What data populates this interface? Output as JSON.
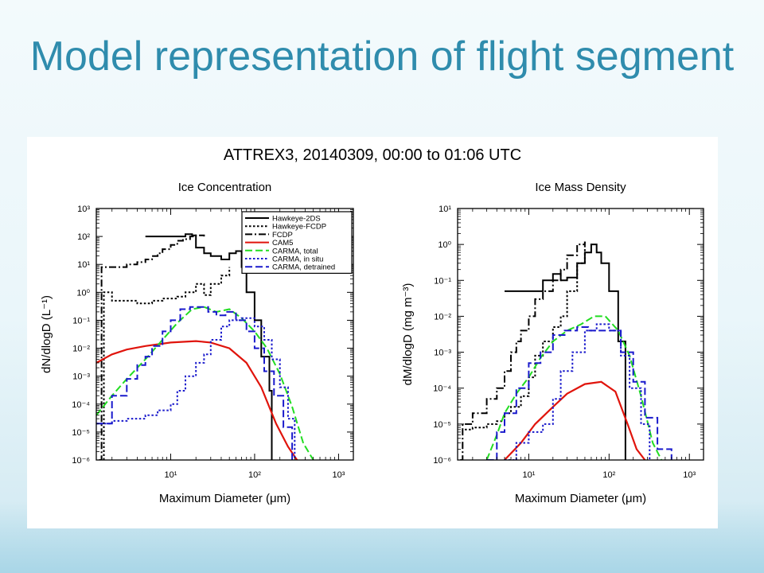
{
  "slide": {
    "title": "Model representation of flight segment"
  },
  "figure": {
    "title": "ATTREX3, 20140309, 00:00 to 01:06 UTC"
  },
  "colors": {
    "title": "#2f8cad",
    "hawkeye_2ds": "#000000",
    "cam5": "#e0140c",
    "carma_total": "#22dd22",
    "carma_in_situ": "#1a1acc",
    "carma_detrained": "#1a1acc"
  },
  "chart_data": [
    {
      "type": "line",
      "title": "Ice Concentration",
      "xlabel": "Maximum Diameter (μm)",
      "ylabel": "dN/dlogD (L⁻¹)",
      "xscale": "log",
      "yscale": "log",
      "xlim": [
        1.3,
        1500
      ],
      "ylim": [
        1e-06,
        1000
      ],
      "xticks": [
        10,
        100,
        1000
      ],
      "xtick_labels": [
        "10¹",
        "10²",
        "10³"
      ],
      "yticks": [
        1e-06,
        1e-05,
        0.0001,
        0.001,
        0.01,
        0.1,
        1,
        10,
        100,
        1000
      ],
      "ytick_labels": [
        "10⁻⁶",
        "10⁻⁵",
        "10⁻⁴",
        "10⁻³",
        "10⁻²",
        "10⁻¹",
        "10⁰",
        "10¹",
        "10²",
        "10³"
      ],
      "legend_position": "top-right",
      "series": [
        {
          "name": "Hawkeye-2DS",
          "style": "solid",
          "color": "#000000",
          "step": true,
          "x": [
            5,
            8,
            12,
            15,
            18,
            20,
            25,
            30,
            40,
            50,
            60,
            70,
            80,
            100,
            120,
            150,
            160,
            160
          ],
          "y": [
            100,
            100,
            100,
            120,
            110,
            40,
            25,
            20,
            15,
            25,
            30,
            8,
            1,
            0.1,
            0.005,
            0.0003,
            0.0003,
            1e-06
          ]
        },
        {
          "name": "Hawkeye-FCDP",
          "style": "dotted",
          "color": "#000000",
          "step": true,
          "x": [
            1.6,
            1.6,
            2,
            3,
            4,
            5,
            6,
            7,
            8,
            10,
            12,
            15,
            20,
            25,
            30,
            40,
            50
          ],
          "y": [
            1e-06,
            1,
            0.5,
            0.5,
            0.4,
            0.4,
            0.5,
            0.5,
            0.6,
            0.6,
            0.7,
            1,
            2,
            0.8,
            2,
            4,
            8
          ]
        },
        {
          "name": "FCDP",
          "style": "dashdot",
          "color": "#000000",
          "step": true,
          "x": [
            1.4,
            1.5,
            2,
            3,
            4,
            5,
            6,
            7,
            8,
            10,
            12,
            14,
            17,
            20,
            25
          ],
          "y": [
            1e-06,
            8,
            8,
            10,
            12,
            15,
            20,
            25,
            35,
            50,
            70,
            80,
            100,
            110,
            100
          ]
        },
        {
          "name": "CAM5",
          "style": "solid",
          "color": "#e0140c",
          "step": false,
          "x": [
            1.3,
            2,
            3,
            5,
            10,
            20,
            30,
            50,
            80,
            120,
            180,
            250,
            320
          ],
          "y": [
            0.003,
            0.006,
            0.009,
            0.012,
            0.016,
            0.018,
            0.016,
            0.01,
            0.003,
            0.0004,
            2e-05,
            3e-06,
            1e-06
          ]
        },
        {
          "name": "CARMA, total",
          "style": "dashed",
          "color": "#22dd22",
          "step": false,
          "x": [
            1.3,
            2,
            3,
            5,
            8,
            12,
            18,
            25,
            35,
            50,
            70,
            100,
            140,
            200,
            280,
            380,
            500
          ],
          "y": [
            4e-05,
            0.0002,
            0.0008,
            0.004,
            0.02,
            0.08,
            0.25,
            0.3,
            0.2,
            0.25,
            0.12,
            0.04,
            0.01,
            0.0012,
            8e-05,
            4e-06,
            1e-06
          ]
        },
        {
          "name": "CARMA, in situ",
          "style": "dotted",
          "color": "#1a1acc",
          "step": true,
          "x": [
            1.3,
            2,
            3,
            5,
            7,
            10,
            12,
            15,
            20,
            25,
            30,
            40,
            50,
            70,
            100,
            130,
            160,
            200,
            250,
            300
          ],
          "y": [
            2e-05,
            2.5e-05,
            3e-05,
            4e-05,
            6e-05,
            0.0001,
            0.0003,
            0.001,
            0.003,
            0.006,
            0.02,
            0.06,
            0.1,
            0.12,
            0.06,
            0.02,
            0.004,
            0.0004,
            3e-05,
            1e-06
          ]
        },
        {
          "name": "CARMA, detrained",
          "style": "dashed",
          "color": "#1a1acc",
          "step": true,
          "x": [
            1.3,
            2,
            3,
            4,
            5,
            6,
            8,
            10,
            13,
            17,
            22,
            28,
            35,
            45,
            60,
            80,
            100,
            130,
            170,
            220,
            280
          ],
          "y": [
            2e-05,
            0.0002,
            0.0008,
            0.0025,
            0.005,
            0.012,
            0.04,
            0.1,
            0.25,
            0.3,
            0.3,
            0.2,
            0.15,
            0.2,
            0.1,
            0.04,
            0.01,
            0.0015,
            0.0002,
            1.5e-05,
            1e-06
          ]
        }
      ]
    },
    {
      "type": "line",
      "title": "Ice Mass Density",
      "xlabel": "Maximum Diameter (μm)",
      "ylabel": "dM/dlogD (mg m⁻³)",
      "xscale": "log",
      "yscale": "log",
      "xlim": [
        1.3,
        1500
      ],
      "ylim": [
        1e-06,
        10
      ],
      "xticks": [
        10,
        100,
        1000
      ],
      "xtick_labels": [
        "10¹",
        "10²",
        "10³"
      ],
      "yticks": [
        1e-06,
        1e-05,
        0.0001,
        0.001,
        0.01,
        0.1,
        1,
        10
      ],
      "ytick_labels": [
        "10⁻⁶",
        "10⁻⁵",
        "10⁻⁴",
        "10⁻³",
        "10⁻²",
        "10⁻¹",
        "10⁰",
        "10¹"
      ],
      "series": [
        {
          "name": "Hawkeye-2DS",
          "style": "solid",
          "color": "#000000",
          "step": true,
          "x": [
            5,
            10,
            15,
            20,
            25,
            30,
            40,
            50,
            60,
            70,
            80,
            100,
            130,
            160,
            160
          ],
          "y": [
            0.05,
            0.05,
            0.1,
            0.15,
            0.1,
            0.12,
            0.3,
            0.6,
            1.0,
            0.6,
            0.3,
            0.05,
            0.002,
            4e-05,
            1e-06
          ]
        },
        {
          "name": "Hawkeye-FCDP",
          "style": "dotted",
          "color": "#000000",
          "step": true,
          "x": [
            1.6,
            2,
            3,
            4,
            5,
            6,
            8,
            10,
            12,
            15,
            20,
            25,
            30,
            40,
            50
          ],
          "y": [
            7e-06,
            8e-06,
            1e-05,
            1.2e-05,
            2e-05,
            3e-05,
            6e-05,
            0.0002,
            0.0008,
            0.002,
            0.005,
            0.01,
            0.05,
            0.3,
            1.2
          ]
        },
        {
          "name": "FCDP",
          "style": "dashdot",
          "color": "#000000",
          "step": true,
          "x": [
            1.4,
            1.5,
            2,
            3,
            4,
            5,
            6,
            7,
            8,
            10,
            12,
            15,
            20,
            25,
            30,
            40,
            50
          ],
          "y": [
            1e-06,
            1e-05,
            2e-05,
            5e-05,
            0.0001,
            0.0003,
            0.001,
            0.002,
            0.004,
            0.01,
            0.03,
            0.05,
            0.1,
            0.2,
            0.5,
            1.0,
            1.2
          ]
        },
        {
          "name": "CAM5",
          "style": "solid",
          "color": "#e0140c",
          "step": false,
          "x": [
            5,
            8,
            12,
            20,
            30,
            50,
            80,
            120,
            170,
            220,
            280
          ],
          "y": [
            1e-06,
            3e-06,
            1e-05,
            3e-05,
            7e-05,
            0.00013,
            0.00015,
            8e-05,
            1e-05,
            2e-06,
            1e-06
          ]
        },
        {
          "name": "CARMA, total",
          "style": "dashed",
          "color": "#22dd22",
          "step": false,
          "x": [
            3,
            4,
            5,
            7,
            10,
            14,
            20,
            30,
            45,
            65,
            90,
            130,
            180,
            250,
            350,
            450
          ],
          "y": [
            1e-06,
            5e-06,
            2e-05,
            7e-05,
            0.0002,
            0.0007,
            0.002,
            0.004,
            0.006,
            0.01,
            0.01,
            0.004,
            0.0008,
            6e-05,
            3e-06,
            1e-06
          ]
        },
        {
          "name": "CARMA, in situ",
          "style": "dotted",
          "color": "#1a1acc",
          "step": true,
          "x": [
            5,
            7,
            10,
            15,
            20,
            25,
            35,
            50,
            70,
            100,
            140,
            180,
            250,
            320
          ],
          "y": [
            1e-06,
            3e-06,
            6e-06,
            1e-05,
            5e-05,
            0.0003,
            0.001,
            0.004,
            0.006,
            0.004,
            0.0008,
            0.0001,
            1e-05,
            1e-06
          ]
        },
        {
          "name": "CARMA, detrained",
          "style": "dashed",
          "color": "#1a1acc",
          "step": true,
          "x": [
            3,
            4,
            5,
            7,
            10,
            14,
            20,
            28,
            40,
            55,
            75,
            100,
            140,
            200,
            280,
            400,
            600
          ],
          "y": [
            1e-06,
            6e-06,
            2e-05,
            0.0001,
            0.0005,
            0.001,
            0.003,
            0.004,
            0.005,
            0.004,
            0.004,
            0.004,
            0.001,
            0.00015,
            1.5e-05,
            2e-06,
            1e-06
          ]
        }
      ]
    }
  ]
}
